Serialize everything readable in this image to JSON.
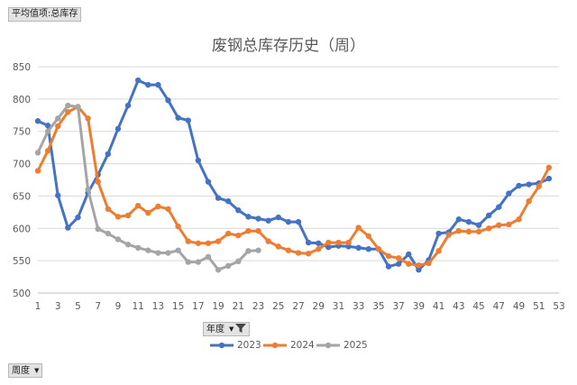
{
  "pivot": {
    "value_field": "平均值项:总库存",
    "legend_field": "年度",
    "axis_field": "周度"
  },
  "chart_data": {
    "type": "line",
    "title": "废钢总库存历史（周）",
    "xlabel": "",
    "ylabel": "",
    "ylim": [
      500,
      850
    ],
    "yticks": [
      500,
      550,
      600,
      650,
      700,
      750,
      800,
      850
    ],
    "xlim": [
      1,
      53
    ],
    "xticks": [
      1,
      3,
      5,
      7,
      9,
      11,
      13,
      15,
      17,
      19,
      21,
      23,
      25,
      27,
      29,
      31,
      33,
      35,
      37,
      39,
      41,
      43,
      45,
      47,
      49,
      51,
      53
    ],
    "grid": "horizontal",
    "legend_position": "bottom",
    "series": [
      {
        "name": "2023",
        "color": "#4472C4",
        "x": [
          1,
          2,
          3,
          4,
          5,
          6,
          7,
          8,
          9,
          10,
          11,
          12,
          13,
          14,
          15,
          16,
          17,
          18,
          19,
          20,
          21,
          22,
          23,
          24,
          25,
          26,
          27,
          28,
          29,
          30,
          31,
          32,
          33,
          34,
          35,
          36,
          37,
          38,
          39,
          40,
          41,
          42,
          43,
          44,
          45,
          46,
          47,
          48,
          49,
          50,
          51,
          52
        ],
        "values": [
          766,
          759,
          651,
          601,
          617,
          655,
          683,
          715,
          754,
          790,
          829,
          822,
          822,
          798,
          771,
          767,
          705,
          672,
          647,
          642,
          628,
          618,
          615,
          612,
          617,
          610,
          610,
          578,
          577,
          571,
          573,
          572,
          570,
          568,
          568,
          541,
          545,
          560,
          536,
          551,
          592,
          594,
          614,
          610,
          605,
          620,
          633,
          654,
          666,
          668,
          670,
          677
        ]
      },
      {
        "name": "2024",
        "color": "#ED7D31",
        "x": [
          1,
          2,
          3,
          4,
          5,
          6,
          7,
          8,
          9,
          10,
          11,
          12,
          13,
          14,
          15,
          16,
          17,
          18,
          19,
          20,
          21,
          22,
          23,
          24,
          25,
          26,
          27,
          28,
          29,
          30,
          31,
          32,
          33,
          34,
          35,
          36,
          37,
          38,
          39,
          40,
          41,
          42,
          43,
          44,
          45,
          46,
          47,
          48,
          49,
          50,
          51,
          52
        ],
        "values": [
          689,
          720,
          758,
          780,
          788,
          770,
          672,
          630,
          618,
          620,
          635,
          624,
          634,
          630,
          603,
          580,
          577,
          577,
          580,
          592,
          589,
          596,
          596,
          580,
          572,
          566,
          562,
          561,
          568,
          578,
          578,
          578,
          601,
          588,
          568,
          557,
          554,
          545,
          543,
          546,
          565,
          590,
          596,
          595,
          595,
          600,
          605,
          606,
          614,
          642,
          665,
          694
        ]
      },
      {
        "name": "2025",
        "color": "#A5A5A5",
        "x": [
          1,
          2,
          3,
          4,
          5,
          6,
          7,
          8,
          9,
          10,
          11,
          12,
          13,
          14,
          15,
          16,
          17,
          18,
          19,
          20,
          21,
          22,
          23
        ],
        "values": [
          717,
          750,
          770,
          790,
          788,
          660,
          599,
          592,
          583,
          575,
          570,
          566,
          562,
          562,
          566,
          548,
          548,
          556,
          536,
          542,
          549,
          565,
          566
        ]
      }
    ]
  }
}
